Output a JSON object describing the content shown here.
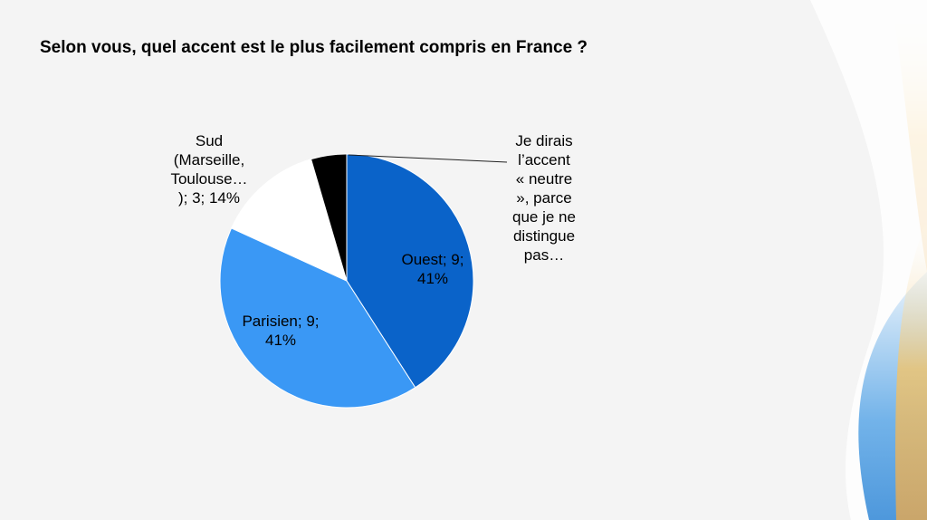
{
  "colors": {
    "background": "#f4f4f4",
    "slice_ouest": "#0a63c9",
    "slice_parisien": "#3a98f5",
    "slice_sud": "#ffffff",
    "slice_neutre": "#000000",
    "deco_blue": "#5aa6e6",
    "deco_gold": "#f2c46a"
  },
  "chart_data": {
    "type": "pie",
    "title": "Selon vous, quel accent est le plus facilement compris en France ?",
    "categories": [
      "Ouest",
      "Parisien",
      "Sud (Marseille, Toulouse… )",
      "Je dirais l’accent « neutre », parce que je ne distingue pas…"
    ],
    "values": [
      9,
      9,
      3,
      1
    ],
    "percentages": [
      41,
      41,
      14,
      5
    ],
    "data_labels": [
      "Ouest; 9;\n41%",
      "Parisien; 9;\n41%",
      "Sud\n(Marseille,\nToulouse…\n); 3; 14%",
      "Je dirais\nl’accent\n« neutre\n», parce\nque je ne\ndistingue\npas…"
    ],
    "legend": "none",
    "grid": false
  }
}
